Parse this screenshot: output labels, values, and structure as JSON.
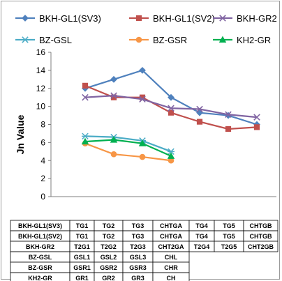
{
  "chart_data": {
    "type": "line",
    "title": "",
    "ylabel": "Jn Value",
    "ylim": [
      0,
      16
    ],
    "ytick_step": 2,
    "grid": false,
    "legend_position": "top",
    "x_positions": 7,
    "series": [
      {
        "name": "BKH-GL1(SV3)",
        "color": "#4f81bd",
        "marker": "diamond",
        "values": [
          12,
          13,
          14,
          11,
          9.3,
          9,
          8
        ]
      },
      {
        "name": "BKH-GL1(SV2)",
        "color": "#c0504d",
        "marker": "square",
        "values": [
          12.3,
          11,
          11,
          9.3,
          8.3,
          7.5,
          7.7
        ]
      },
      {
        "name": "BKH-GR2",
        "color": "#8064a2",
        "marker": "x",
        "values": [
          11,
          11.2,
          10.8,
          9.8,
          9.7,
          9.1,
          8.8
        ]
      },
      {
        "name": "BZ-GSL",
        "color": "#4bacc6",
        "marker": "star",
        "values": [
          6.7,
          6.6,
          6.2,
          5
        ]
      },
      {
        "name": "BZ-GSR",
        "color": "#f79646",
        "marker": "circle",
        "values": [
          5.9,
          4.7,
          4.4,
          4
        ]
      },
      {
        "name": "KH2-GR",
        "color": "#00b050",
        "marker": "triangle",
        "values": [
          6.1,
          6.3,
          5.9,
          4.5
        ]
      }
    ],
    "table": [
      [
        "BKH-GL1(SV3)",
        "TG1",
        "TG2",
        "TG3",
        "CHTGA",
        "TG4",
        "TG5",
        "CHTGB"
      ],
      [
        "BKH-GL1(SV2)",
        "TG1",
        "TG2",
        "TG3",
        "CHTGA",
        "TG4",
        "TG5",
        "CHTGB"
      ],
      [
        "BKH-GR2",
        "T2G1",
        "T2G2",
        "T2G3",
        "CHT2GA",
        "T2G4",
        "T2G5",
        "CHT2GB"
      ],
      [
        "BZ-GSL",
        "GSL1",
        "GSL2",
        "GSL3",
        "CHL"
      ],
      [
        "BZ-GSR",
        "GSR1",
        "GSR2",
        "GSR3",
        "CHR"
      ],
      [
        "KH2-GR",
        "GR1",
        "GR2",
        "GR3",
        "CH"
      ]
    ]
  }
}
